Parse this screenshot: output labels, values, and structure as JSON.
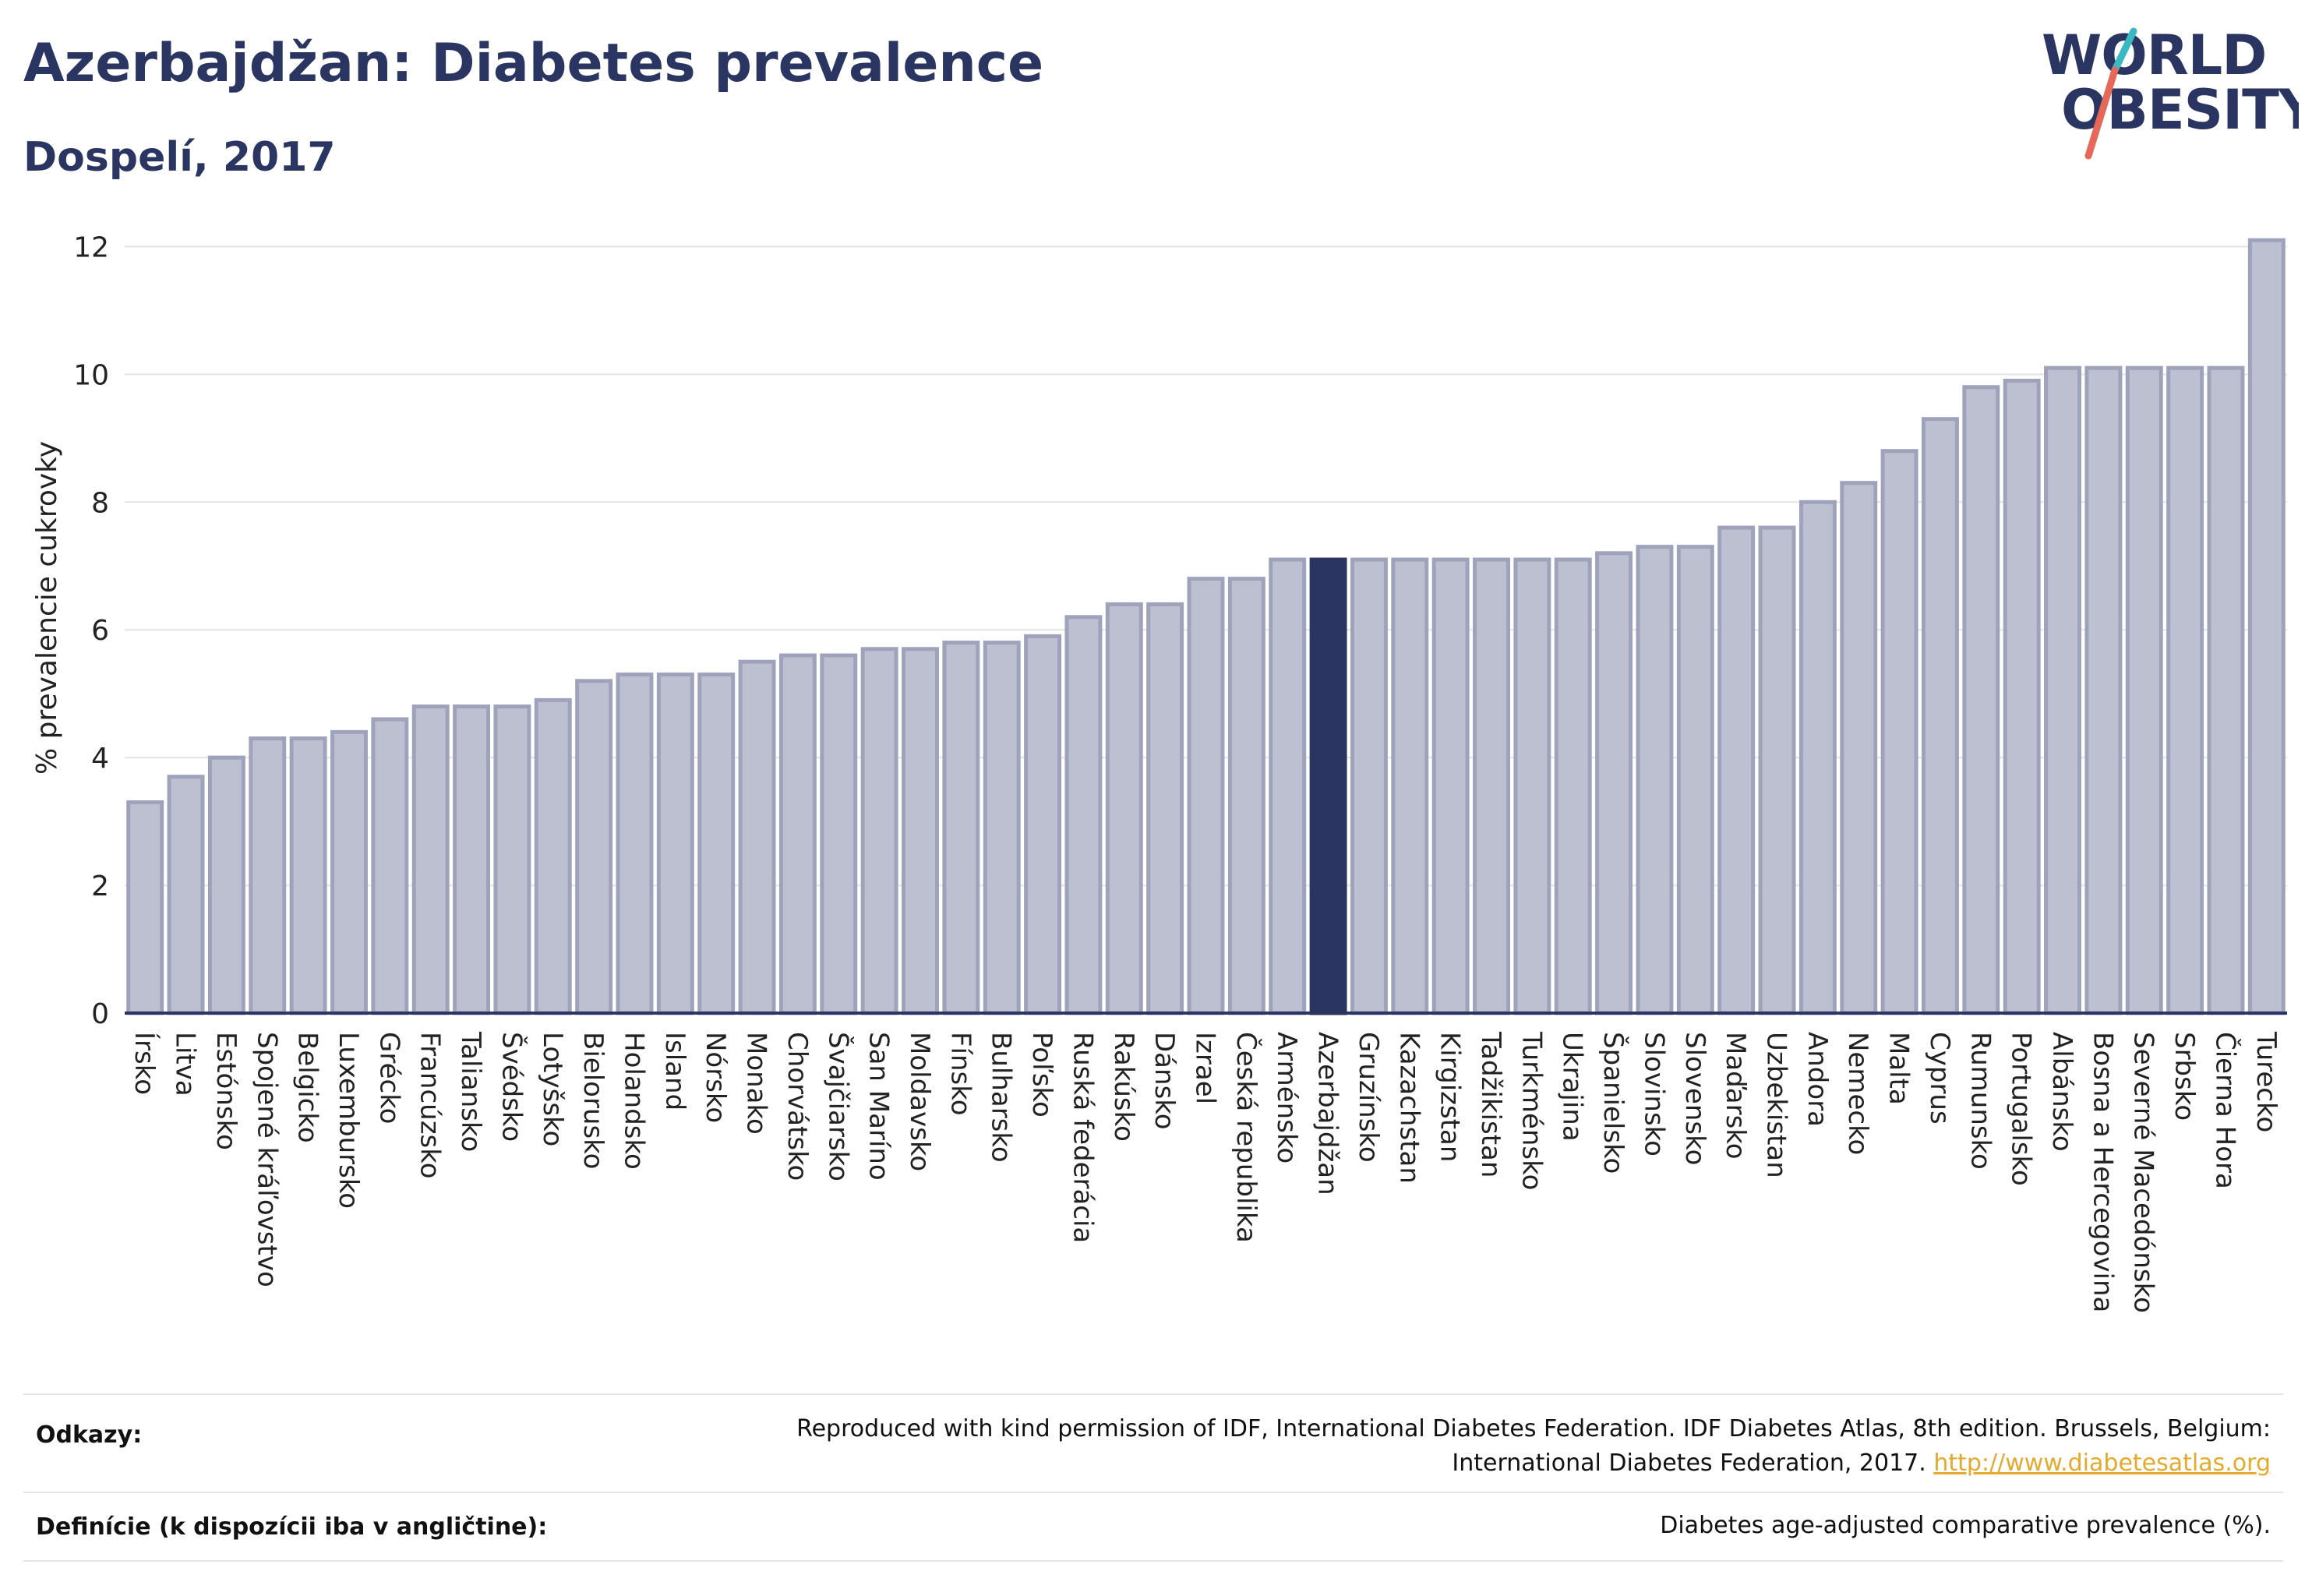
{
  "header": {
    "title": "Azerbajdžan: Diabetes prevalence",
    "subtitle": "Dospelí, 2017"
  },
  "logo": {
    "line1": "WORLD",
    "line2": "OBESITY",
    "colors": {
      "text": "#2b3562",
      "slash_top": "#3bb9c2",
      "slash_bottom": "#e5685a"
    }
  },
  "chart_data": {
    "type": "bar",
    "ylabel": "% prevalencie cukrovky",
    "ylim": [
      0,
      12.2
    ],
    "yticks": [
      0,
      2,
      4,
      6,
      8,
      10,
      12
    ],
    "grid": true,
    "highlight": "Azerbajdžan",
    "colors": {
      "bar": "#bcc0d0",
      "bar_border": "#9ea3bb",
      "highlight": "#2b3562"
    },
    "categories": [
      "Írsko",
      "Litva",
      "Estónsko",
      "Spojené kráľovstvo",
      "Belgicko",
      "Luxembursko",
      "Grécko",
      "Francúzsko",
      "Taliansko",
      "Švédsko",
      "Lotyšsko",
      "Bielorusko",
      "Holandsko",
      "Island",
      "Nórsko",
      "Monako",
      "Chorvátsko",
      "Švajčiarsko",
      "San Maríno",
      "Moldavsko",
      "Fínsko",
      "Bulharsko",
      "Poľsko",
      "Ruská federácia",
      "Rakúsko",
      "Dánsko",
      "Izrael",
      "Česká republika",
      "Arménsko",
      "Azerbajdžan",
      "Gruzínsko",
      "Kazachstan",
      "Kirgizstan",
      "Tadžikistan",
      "Turkménsko",
      "Ukrajina",
      "Španielsko",
      "Slovinsko",
      "Slovensko",
      "Maďarsko",
      "Uzbekistan",
      "Andora",
      "Nemecko",
      "Malta",
      "Cyprus",
      "Rumunsko",
      "Portugalsko",
      "Albánsko",
      "Bosna a Hercegovina",
      "Severné Macedónsko",
      "Srbsko",
      "Čierna Hora",
      "Turecko"
    ],
    "values": [
      3.3,
      3.7,
      4.0,
      4.3,
      4.3,
      4.4,
      4.6,
      4.8,
      4.8,
      4.8,
      4.9,
      5.2,
      5.3,
      5.3,
      5.3,
      5.5,
      5.6,
      5.6,
      5.7,
      5.7,
      5.8,
      5.8,
      5.9,
      6.2,
      6.4,
      6.4,
      6.8,
      6.8,
      7.1,
      7.1,
      7.1,
      7.1,
      7.1,
      7.1,
      7.1,
      7.1,
      7.2,
      7.3,
      7.3,
      7.6,
      7.6,
      8.0,
      8.3,
      8.8,
      9.3,
      9.8,
      9.9,
      10.1,
      10.1,
      10.1,
      10.1,
      10.1,
      12.1
    ]
  },
  "footer": {
    "references_label": "Odkazy:",
    "references_line1": "Reproduced with kind permission of IDF, International Diabetes Federation. IDF Diabetes Atlas, 8th edition. Brussels, Belgium:",
    "references_line2": "International Diabetes Federation, 2017.",
    "references_link": "http://www.diabetesatlas.org",
    "definitions_label": "Definície (k dispozícii iba v angličtine):",
    "definitions_text": "Diabetes age-adjusted comparative prevalence (%)."
  }
}
